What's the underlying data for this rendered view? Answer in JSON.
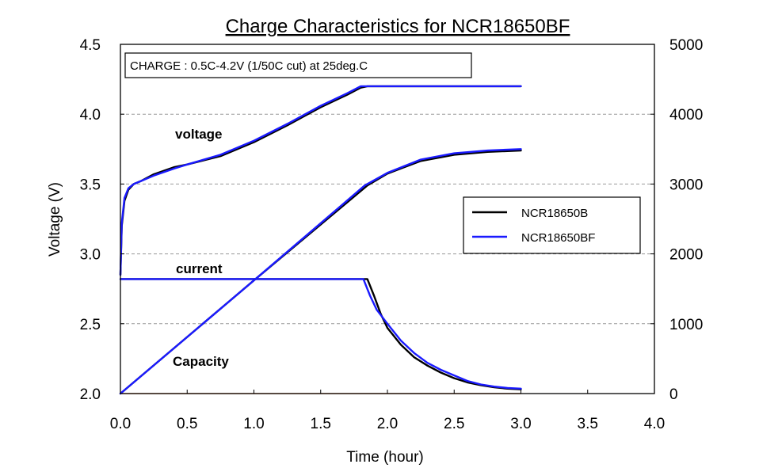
{
  "chart_data": {
    "type": "line",
    "title": "Charge Characteristics for NCR18650BF",
    "annotation_box": "CHARGE : 0.5C-4.2V (1/50C cut) at 25deg.C",
    "xlabel": "Time (hour)",
    "ylabel": "Voltage (V)",
    "y2label": "",
    "xlim": [
      0,
      4
    ],
    "ylim": [
      2.0,
      4.5
    ],
    "y2lim": [
      0,
      5000
    ],
    "x_ticks": [
      "0.0",
      "0.5",
      "1.0",
      "1.5",
      "2.0",
      "2.5",
      "3.0",
      "3.5",
      "4.0"
    ],
    "y_ticks": [
      "2.0",
      "2.5",
      "3.0",
      "3.5",
      "4.0",
      "4.5"
    ],
    "y2_ticks": [
      "0",
      "1000",
      "2000",
      "3000",
      "4000",
      "5000"
    ],
    "grid": "horizontal dashed",
    "legend_position": "right",
    "legend": [
      "NCR18650B",
      "NCR18650BF"
    ],
    "series_colors": {
      "NCR18650B": "#000000",
      "NCR18650BF": "#1a1aff"
    },
    "curve_labels": {
      "voltage": "voltage",
      "current": "current",
      "capacity": "Capacity"
    },
    "series": [
      {
        "name": "NCR18650B",
        "quantity": "voltage",
        "axis": "left",
        "x": [
          0.0,
          0.01,
          0.03,
          0.06,
          0.1,
          0.15,
          0.25,
          0.4,
          0.5,
          0.75,
          1.0,
          1.25,
          1.5,
          1.7,
          1.8,
          1.85,
          2.0,
          2.5,
          3.0
        ],
        "y": [
          2.85,
          3.2,
          3.38,
          3.46,
          3.5,
          3.52,
          3.57,
          3.62,
          3.64,
          3.7,
          3.8,
          3.92,
          4.05,
          4.14,
          4.19,
          4.2,
          4.2,
          4.2,
          4.2
        ]
      },
      {
        "name": "NCR18650BF",
        "quantity": "voltage",
        "axis": "left",
        "x": [
          0.0,
          0.01,
          0.03,
          0.06,
          0.1,
          0.15,
          0.25,
          0.4,
          0.5,
          0.75,
          1.0,
          1.25,
          1.5,
          1.7,
          1.8,
          1.83,
          2.0,
          2.5,
          3.0
        ],
        "y": [
          2.85,
          3.22,
          3.4,
          3.47,
          3.5,
          3.52,
          3.56,
          3.61,
          3.64,
          3.71,
          3.81,
          3.93,
          4.06,
          4.15,
          4.2,
          4.2,
          4.2,
          4.2,
          4.2
        ]
      },
      {
        "name": "NCR18650B",
        "quantity": "current",
        "axis": "left",
        "x": [
          0.0,
          1.85,
          1.9,
          1.95,
          2.0,
          2.1,
          2.2,
          2.3,
          2.4,
          2.5,
          2.6,
          2.7,
          2.8,
          2.9,
          3.0
        ],
        "y": [
          2.82,
          2.82,
          2.7,
          2.57,
          2.47,
          2.35,
          2.26,
          2.2,
          2.15,
          2.11,
          2.08,
          2.06,
          2.045,
          2.035,
          2.03
        ]
      },
      {
        "name": "NCR18650BF",
        "quantity": "current",
        "axis": "left",
        "x": [
          0.0,
          1.82,
          1.87,
          1.92,
          2.0,
          2.1,
          2.2,
          2.3,
          2.4,
          2.5,
          2.6,
          2.7,
          2.8,
          2.9,
          3.0
        ],
        "y": [
          2.82,
          2.82,
          2.7,
          2.6,
          2.5,
          2.38,
          2.29,
          2.22,
          2.17,
          2.13,
          2.09,
          2.065,
          2.05,
          2.04,
          2.035
        ]
      },
      {
        "name": "NCR18650B",
        "quantity": "capacity",
        "axis": "right",
        "x": [
          0.0,
          1.0,
          1.85,
          2.0,
          2.25,
          2.5,
          2.75,
          3.0
        ],
        "y": [
          0,
          1620,
          2980,
          3150,
          3330,
          3420,
          3460,
          3480
        ]
      },
      {
        "name": "NCR18650BF",
        "quantity": "capacity",
        "axis": "right",
        "x": [
          0.0,
          1.0,
          1.83,
          2.0,
          2.25,
          2.5,
          2.75,
          3.0
        ],
        "y": [
          0,
          1620,
          2980,
          3160,
          3350,
          3440,
          3480,
          3500
        ]
      }
    ],
    "baseline_series": {
      "color": "#f0a070",
      "x": [
        0.0,
        3.0
      ],
      "y": [
        2.0,
        2.0
      ]
    }
  }
}
